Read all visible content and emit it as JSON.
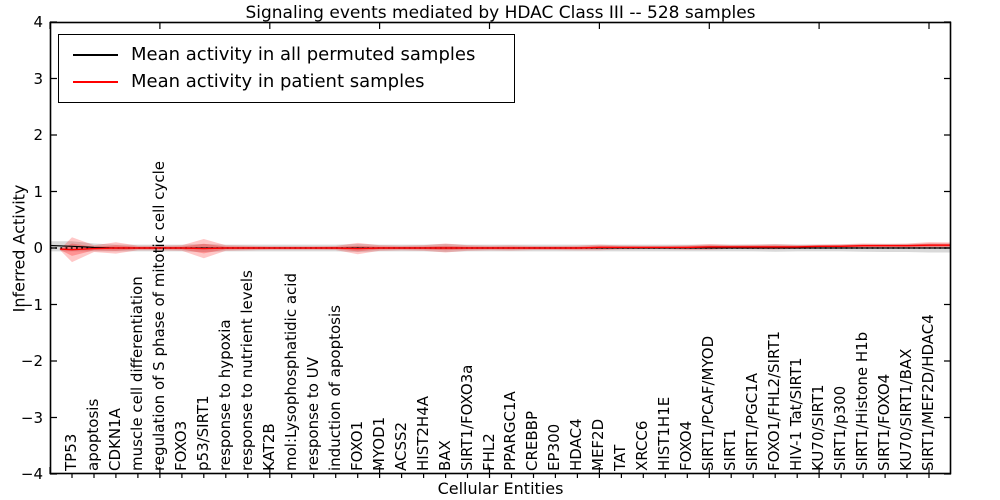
{
  "chart_data": {
    "type": "line",
    "title": "Signaling events mediated by HDAC Class III -- 528 samples",
    "xlabel": "Cellular Entities",
    "ylabel": "Inferred Activity",
    "ylim": [
      -4,
      4
    ],
    "ytick_labels": [
      "−4",
      "−3",
      "−2",
      "−1",
      "0",
      "1",
      "2",
      "3",
      "4"
    ],
    "yticks": [
      -4,
      -3,
      -2,
      -1,
      0,
      1,
      2,
      3,
      4
    ],
    "grid": false,
    "legend_position": "upper left",
    "zero_line_style": "dotted black",
    "categories": [
      "TP53",
      "apoptosis",
      "CDKN1A",
      "muscle cell differentiation",
      "regulation of S phase of mitotic cell cycle",
      "FOXO3",
      "p53/SIRT1",
      "response to hypoxia",
      "response to nutrient levels",
      "KAT2B",
      "mol:Lysophosphatidic acid",
      "response to UV",
      "induction of apoptosis",
      "FOXO1",
      "MYOD1",
      "ACSS2",
      "HIST2H4A",
      "BAX",
      "SIRT1/FOXO3a",
      "FHL2",
      "PPARGC1A",
      "CREBBP",
      "EP300",
      "HDAC4",
      "MEF2D",
      "TAT",
      "XRCC6",
      "HIST1H1E",
      "FOXO4",
      "SIRT1/PCAF/MYOD",
      "SIRT1",
      "SIRT1/PGC1A",
      "FOXO1/FHL2/SIRT1",
      "HIV-1 Tat/SIRT1",
      "KU70/SIRT1",
      "SIRT1/p300",
      "SIRT1/Histone H1b",
      "SIRT1/FOXO4",
      "KU70/SIRT1/BAX",
      "SIRT1/MEF2D/HDAC4"
    ],
    "series": [
      {
        "name": "Mean activity in all permuted samples",
        "color": "#000000",
        "values": [
          0.03,
          0.01,
          0.0,
          0.0,
          0.0,
          0.0,
          0.0,
          0.0,
          0.0,
          0.0,
          0.0,
          0.0,
          0.0,
          0.0,
          0.0,
          0.0,
          0.0,
          0.0,
          0.0,
          0.0,
          0.0,
          0.0,
          0.0,
          0.0,
          0.0,
          0.0,
          0.0,
          0.0,
          0.0,
          0.0,
          0.0,
          0.0,
          0.0,
          0.0,
          0.0,
          0.0,
          0.0,
          0.0,
          0.0,
          0.0
        ]
      },
      {
        "name": "Mean activity in patient samples",
        "color": "#ff0000",
        "values": [
          -0.03,
          -0.01,
          0.0,
          0.0,
          0.0,
          0.0,
          -0.01,
          0.0,
          0.0,
          0.0,
          0.0,
          0.0,
          0.0,
          -0.01,
          0.0,
          0.0,
          0.0,
          0.0,
          0.0,
          0.0,
          0.0,
          0.0,
          0.0,
          0.0,
          0.01,
          0.01,
          0.01,
          0.01,
          0.01,
          0.02,
          0.02,
          0.02,
          0.02,
          0.02,
          0.03,
          0.03,
          0.04,
          0.04,
          0.04,
          0.05
        ]
      }
    ],
    "bands": [
      {
        "name": "patient samples std",
        "color": "#ff0000",
        "opacity": 0.22,
        "half_widths": [
          0.22,
          0.06,
          0.1,
          0.04,
          0.04,
          0.05,
          0.17,
          0.05,
          0.04,
          0.03,
          0.03,
          0.03,
          0.035,
          0.1,
          0.05,
          0.04,
          0.05,
          0.08,
          0.05,
          0.04,
          0.045,
          0.035,
          0.035,
          0.04,
          0.05,
          0.035,
          0.03,
          0.03,
          0.04,
          0.05,
          0.035,
          0.04,
          0.045,
          0.035,
          0.03,
          0.035,
          0.04,
          0.035,
          0.04,
          0.055
        ]
      },
      {
        "name": "permuted samples std",
        "color": "#aaaaaa",
        "opacity": 0.45,
        "half_widths": [
          0.09,
          0.07,
          0.06,
          0.06,
          0.06,
          0.06,
          0.07,
          0.06,
          0.06,
          0.06,
          0.06,
          0.06,
          0.06,
          0.07,
          0.06,
          0.06,
          0.06,
          0.07,
          0.06,
          0.06,
          0.06,
          0.06,
          0.06,
          0.06,
          0.06,
          0.06,
          0.06,
          0.06,
          0.06,
          0.06,
          0.06,
          0.06,
          0.065,
          0.06,
          0.06,
          0.06,
          0.065,
          0.07,
          0.07,
          0.08
        ]
      }
    ]
  }
}
